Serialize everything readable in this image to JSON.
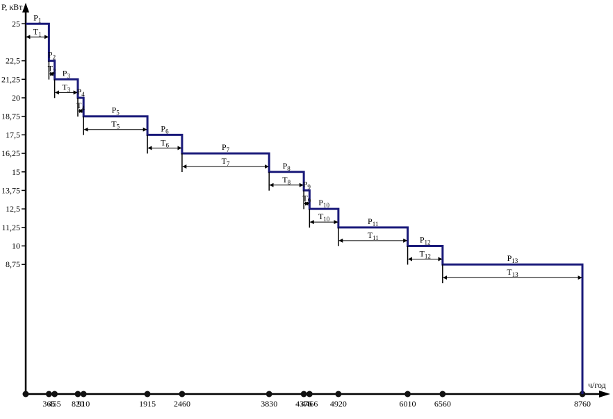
{
  "chart_data": {
    "type": "line",
    "subtype": "step",
    "ylabel": "P, кВт",
    "xlabel": "ч/год",
    "xlim": [
      0,
      8760
    ],
    "ylim": [
      0,
      25
    ],
    "y_ticks": [
      "25",
      "22,5",
      "21,25",
      "20",
      "18,75",
      "17,5",
      "16,25",
      "15",
      "13,75",
      "12,5",
      "11,25",
      "10",
      "8,75"
    ],
    "y_tick_values": [
      25,
      22.5,
      21.25,
      20,
      18.75,
      17.5,
      16.25,
      15,
      13.75,
      12.5,
      11.25,
      10,
      8.75
    ],
    "x_ticks": [
      "365",
      "455",
      "820",
      "910",
      "1915",
      "2460",
      "3830",
      "4376",
      "4466",
      "4920",
      "6010",
      "6560",
      "8760"
    ],
    "x_tick_values": [
      365,
      455,
      820,
      910,
      1915,
      2460,
      3830,
      4376,
      4466,
      4920,
      6010,
      6560,
      8760
    ],
    "steps": [
      {
        "p_label": "P",
        "p_sub": "1",
        "t_label": "T",
        "t_sub": "1",
        "x_start": 0,
        "x_end": 365,
        "power": 25
      },
      {
        "p_label": "P",
        "p_sub": "2",
        "t_label": "T",
        "t_sub": "2",
        "x_start": 365,
        "x_end": 455,
        "power": 22.5
      },
      {
        "p_label": "P",
        "p_sub": "3",
        "t_label": "T",
        "t_sub": "3",
        "x_start": 455,
        "x_end": 820,
        "power": 21.25
      },
      {
        "p_label": "P",
        "p_sub": "4",
        "t_label": "T",
        "t_sub": "4",
        "x_start": 820,
        "x_end": 910,
        "power": 20
      },
      {
        "p_label": "P",
        "p_sub": "5",
        "t_label": "T",
        "t_sub": "5",
        "x_start": 910,
        "x_end": 1915,
        "power": 18.75
      },
      {
        "p_label": "P",
        "p_sub": "6",
        "t_label": "T",
        "t_sub": "6",
        "x_start": 1915,
        "x_end": 2460,
        "power": 17.5
      },
      {
        "p_label": "P",
        "p_sub": "7",
        "t_label": "T",
        "t_sub": "7",
        "x_start": 2460,
        "x_end": 3830,
        "power": 16.25
      },
      {
        "p_label": "P",
        "p_sub": "8",
        "t_label": "T",
        "t_sub": "8",
        "x_start": 3830,
        "x_end": 4376,
        "power": 15
      },
      {
        "p_label": "P",
        "p_sub": "9",
        "t_label": "T",
        "t_sub": "9",
        "x_start": 4376,
        "x_end": 4466,
        "power": 13.75
      },
      {
        "p_label": "P",
        "p_sub": "10",
        "t_label": "T",
        "t_sub": "10",
        "x_start": 4466,
        "x_end": 4920,
        "power": 12.5
      },
      {
        "p_label": "P",
        "p_sub": "11",
        "t_label": "T",
        "t_sub": "11",
        "x_start": 4920,
        "x_end": 6010,
        "power": 11.25
      },
      {
        "p_label": "P",
        "p_sub": "12",
        "t_label": "T",
        "t_sub": "12",
        "x_start": 6010,
        "x_end": 6560,
        "power": 10
      },
      {
        "p_label": "P",
        "p_sub": "13",
        "t_label": "T",
        "t_sub": "13",
        "x_start": 6560,
        "x_end": 8760,
        "power": 8.75
      }
    ],
    "colors": {
      "step_line": "#1a1a7a",
      "axis": "#000000",
      "marker": "#111111"
    },
    "grid": false,
    "legend": "none"
  }
}
